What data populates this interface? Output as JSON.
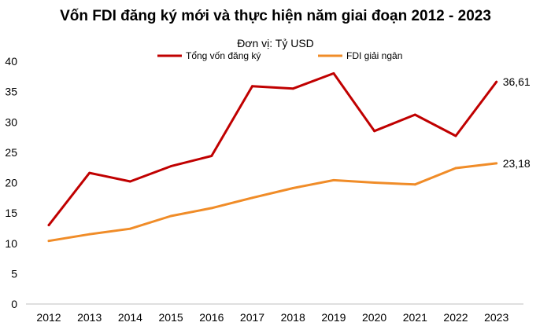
{
  "chart_data": {
    "type": "line",
    "title": "Vốn FDI đăng ký mới và thực hiện năm giai đoạn 2012 - 2023",
    "unit_label": "Đơn vị: Tỷ USD",
    "xlabel": "",
    "ylabel": "",
    "ylim": [
      0,
      40
    ],
    "yticks": [
      "0",
      "5",
      "10",
      "15",
      "20",
      "25",
      "30",
      "35",
      "40"
    ],
    "categories": [
      "2012",
      "2013",
      "2014",
      "2015",
      "2016",
      "2017",
      "2018",
      "2019",
      "2020",
      "2021",
      "2022",
      "2023"
    ],
    "legend_position": "top",
    "grid": false,
    "series": [
      {
        "name": "Tổng vốn đăng ký",
        "color": "#c00000",
        "values": [
          13.0,
          21.6,
          20.2,
          22.7,
          24.4,
          35.9,
          35.5,
          38.0,
          28.5,
          31.2,
          27.7,
          36.61
        ],
        "end_label": "36,61"
      },
      {
        "name": "FDI giải ngân",
        "color": "#f08c28",
        "values": [
          10.4,
          11.5,
          12.4,
          14.5,
          15.8,
          17.5,
          19.1,
          20.4,
          20.0,
          19.7,
          22.4,
          23.18
        ],
        "end_label": "23,18"
      }
    ]
  }
}
